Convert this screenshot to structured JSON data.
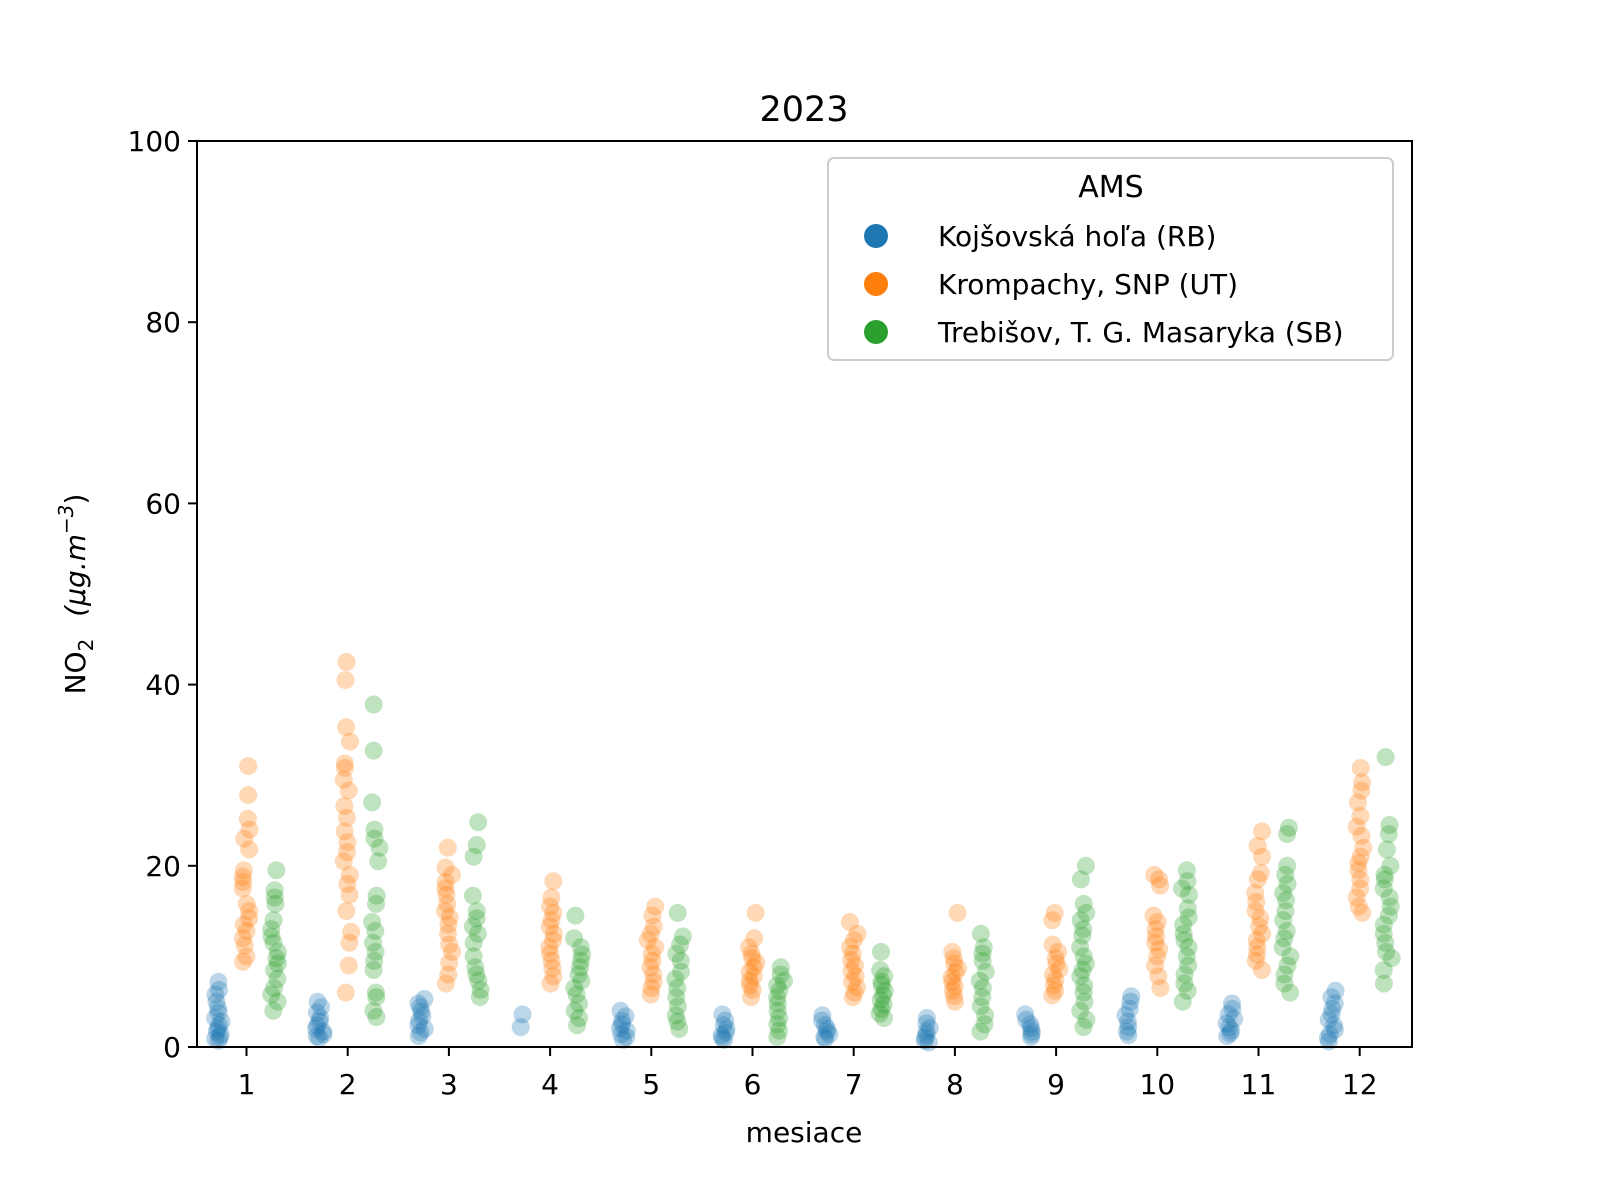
{
  "chart_data": {
    "type": "scatter",
    "title": "2023",
    "xlabel": "mesiace",
    "ylabel": {
      "main": "NO",
      "sub": "2",
      "unit": "(μg.m",
      "sup": "−3",
      "close": ")"
    },
    "ylim": [
      0,
      100
    ],
    "yticks": [
      0,
      20,
      40,
      60,
      80,
      100
    ],
    "categories": [
      "1",
      "2",
      "3",
      "4",
      "5",
      "6",
      "7",
      "8",
      "9",
      "10",
      "11",
      "12"
    ],
    "grid": false,
    "legend": {
      "title": "AMS",
      "position": "top-right"
    },
    "series": [
      {
        "name": "Kojšovská hoľa (RB)",
        "color": "#1f77b4",
        "values": [
          [
            7.2,
            6.3,
            5.8,
            5.0,
            4.3,
            3.8,
            3.2,
            2.8,
            2.4,
            2.0,
            1.7,
            1.4,
            1.1,
            0.9,
            0.7
          ],
          [
            5.0,
            4.4,
            3.8,
            3.2,
            2.8,
            2.4,
            2.0,
            1.7,
            1.4,
            1.2,
            1.0
          ],
          [
            5.3,
            4.8,
            4.4,
            3.9,
            3.4,
            2.9,
            2.4,
            2.0,
            1.6,
            1.2
          ],
          [
            3.6,
            2.2
          ],
          [
            4.0,
            3.4,
            2.9,
            2.5,
            2.1,
            1.8,
            1.4,
            1.1,
            0.8
          ],
          [
            3.6,
            2.9,
            2.4,
            2.0,
            1.6,
            1.3,
            1.0,
            0.8
          ],
          [
            3.5,
            2.9,
            2.4,
            2.0,
            1.7,
            1.4,
            1.1,
            0.9
          ],
          [
            3.2,
            2.6,
            2.1,
            1.7,
            1.3,
            1.0,
            0.7,
            0.5
          ],
          [
            3.6,
            3.0,
            2.5,
            2.1,
            1.7,
            1.4,
            1.1
          ],
          [
            5.6,
            5.0,
            4.2,
            3.5,
            2.8,
            2.2,
            1.7,
            1.3
          ],
          [
            4.8,
            4.2,
            3.6,
            3.1,
            2.6,
            2.2,
            1.8,
            1.5,
            1.2
          ],
          [
            6.2,
            5.5,
            4.8,
            4.2,
            3.6,
            3.0,
            2.4,
            1.9,
            1.4,
            1.0,
            0.6
          ]
        ]
      },
      {
        "name": "Krompachy, SNP (UT)",
        "color": "#ff7f0e",
        "values": [
          [
            31.0,
            27.8,
            25.2,
            24.0,
            23.0,
            21.8,
            19.5,
            18.8,
            18.2,
            17.5,
            15.8,
            15.0,
            14.2,
            13.5,
            12.8,
            12.0,
            11.2,
            10.0,
            9.4
          ],
          [
            42.5,
            40.5,
            35.3,
            33.7,
            31.3,
            30.8,
            29.5,
            28.3,
            26.6,
            25.3,
            23.8,
            22.6,
            21.5,
            20.5,
            19.0,
            18.0,
            16.8,
            15.0,
            12.7,
            11.5,
            9.0,
            6.0
          ],
          [
            22.0,
            19.8,
            19.0,
            18.2,
            17.5,
            16.8,
            15.8,
            15.0,
            14.3,
            13.5,
            12.5,
            11.3,
            10.5,
            9.3,
            8.0,
            7.0
          ],
          [
            18.3,
            16.5,
            15.5,
            14.8,
            14.0,
            13.3,
            12.5,
            11.8,
            11.0,
            10.3,
            9.5,
            8.7,
            7.8,
            7.0
          ],
          [
            15.5,
            14.5,
            13.3,
            12.5,
            11.8,
            11.0,
            10.3,
            9.5,
            8.8,
            8.0,
            7.2,
            6.5,
            5.8
          ],
          [
            14.8,
            12.0,
            11.0,
            10.3,
            9.8,
            9.3,
            8.8,
            8.3,
            7.8,
            7.3,
            6.8,
            6.3,
            5.5
          ],
          [
            13.8,
            12.5,
            11.8,
            11.0,
            10.3,
            9.6,
            9.0,
            8.4,
            7.8,
            7.2,
            6.6,
            6.0,
            5.5
          ],
          [
            14.8,
            10.5,
            9.8,
            9.2,
            8.7,
            8.2,
            7.7,
            7.2,
            6.7,
            6.2,
            5.6,
            5.0
          ],
          [
            14.8,
            14.0,
            11.3,
            10.5,
            9.8,
            9.2,
            8.6,
            8.0,
            7.4,
            6.8,
            6.2,
            5.7
          ],
          [
            19.0,
            18.5,
            17.8,
            14.5,
            13.8,
            13.0,
            12.2,
            11.5,
            10.8,
            10.0,
            9.0,
            7.8,
            6.5
          ],
          [
            23.8,
            22.2,
            21.0,
            19.2,
            18.5,
            17.0,
            16.0,
            15.0,
            14.2,
            13.3,
            12.5,
            11.8,
            11.0,
            10.2,
            9.5,
            8.5
          ],
          [
            30.8,
            29.2,
            28.3,
            27.0,
            25.5,
            24.3,
            23.3,
            22.0,
            21.0,
            20.3,
            19.5,
            18.5,
            17.5,
            16.5,
            15.5,
            14.8
          ]
        ]
      },
      {
        "name": "Trebišov, T. G. Masaryka (SB)",
        "color": "#2ca02c",
        "values": [
          [
            19.5,
            17.3,
            16.5,
            15.8,
            14.0,
            13.0,
            12.2,
            11.5,
            10.5,
            9.8,
            9.2,
            8.5,
            7.5,
            6.5,
            5.8,
            5.0,
            4.0
          ],
          [
            37.8,
            32.7,
            27.0,
            24.0,
            23.0,
            22.0,
            20.5,
            16.7,
            15.8,
            13.8,
            12.8,
            11.5,
            10.5,
            9.5,
            8.5,
            6.0,
            5.5,
            4.0,
            3.3
          ],
          [
            24.8,
            22.3,
            21.0,
            16.7,
            15.0,
            14.2,
            13.3,
            12.5,
            11.5,
            10.0,
            8.8,
            8.0,
            7.3,
            6.3,
            5.5
          ],
          [
            14.5,
            12.0,
            11.0,
            10.2,
            9.5,
            8.8,
            8.0,
            7.3,
            6.5,
            5.8,
            4.8,
            4.0,
            3.2,
            2.4
          ],
          [
            14.8,
            12.2,
            11.3,
            10.3,
            9.5,
            8.3,
            7.5,
            6.5,
            5.5,
            4.5,
            3.5,
            2.8,
            2.0
          ],
          [
            8.8,
            8.0,
            7.3,
            6.8,
            6.2,
            5.5,
            4.8,
            4.0,
            3.2,
            2.5,
            1.8,
            1.1
          ],
          [
            10.5,
            8.5,
            7.8,
            7.2,
            6.8,
            6.2,
            5.7,
            5.2,
            4.7,
            4.2,
            3.7,
            3.2
          ],
          [
            12.5,
            11.0,
            10.3,
            9.5,
            8.3,
            7.3,
            6.5,
            5.5,
            4.5,
            3.5,
            2.5,
            1.7
          ],
          [
            20.0,
            18.5,
            15.8,
            14.8,
            14.0,
            13.0,
            12.3,
            11.0,
            10.0,
            9.2,
            8.5,
            7.8,
            6.8,
            6.0,
            5.0,
            4.0,
            3.0,
            2.2
          ],
          [
            19.5,
            18.3,
            17.5,
            16.8,
            15.3,
            14.3,
            13.5,
            12.5,
            11.8,
            11.0,
            10.0,
            9.0,
            8.0,
            7.0,
            6.2,
            5.0
          ],
          [
            24.2,
            23.5,
            20.0,
            19.0,
            18.0,
            17.0,
            16.2,
            15.0,
            14.0,
            12.8,
            12.0,
            11.0,
            10.0,
            9.0,
            8.0,
            7.0,
            6.0
          ],
          [
            32.0,
            24.5,
            23.5,
            21.8,
            20.0,
            19.0,
            18.5,
            17.5,
            16.5,
            15.5,
            14.5,
            13.5,
            12.5,
            11.5,
            10.5,
            9.8,
            8.5,
            7.0
          ]
        ]
      }
    ]
  }
}
